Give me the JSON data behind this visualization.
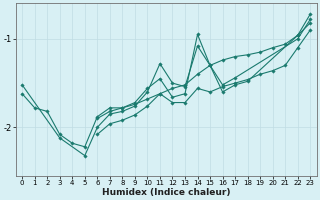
{
  "xlabel": "Humidex (Indice chaleur)",
  "background_color": "#d8f0f4",
  "grid_color": "#c0dde4",
  "line_color": "#1a7a6e",
  "xlim": [
    -0.5,
    23.5
  ],
  "ylim": [
    -2.55,
    -0.6
  ],
  "yticks": [
    -2,
    -1
  ],
  "xticks": [
    0,
    1,
    2,
    3,
    4,
    5,
    6,
    7,
    8,
    9,
    10,
    11,
    12,
    13,
    14,
    15,
    16,
    17,
    18,
    19,
    20,
    21,
    22,
    23
  ],
  "series": [
    [
      0,
      -1.62,
      1,
      -1.78,
      2,
      -1.82,
      3,
      -2.08,
      4,
      -2.18,
      5,
      -2.22,
      6,
      -1.88,
      7,
      -1.78,
      8,
      -1.78,
      9,
      -1.74,
      10,
      -1.68,
      11,
      -1.62,
      12,
      -1.56,
      13,
      -1.52,
      14,
      -1.4,
      15,
      -1.3,
      16,
      -1.24,
      17,
      -1.2,
      18,
      -1.18,
      19,
      -1.15,
      20,
      -1.1,
      21,
      -1.06,
      22,
      -0.96,
      23,
      -0.82
    ],
    [
      0,
      -1.52,
      3,
      -2.12,
      5,
      -2.32,
      6,
      -2.0,
      7,
      -1.85,
      8,
      -1.82,
      9,
      -1.76,
      10,
      -1.6,
      11,
      -1.28,
      12,
      -1.5,
      13,
      -1.54,
      14,
      -1.08,
      15,
      -1.3,
      16,
      -1.6,
      17,
      -1.52,
      18,
      -1.48,
      22,
      -0.96,
      23,
      -0.72
    ],
    [
      6,
      -1.9,
      7,
      -1.82,
      8,
      -1.78,
      9,
      -1.72,
      10,
      -1.56,
      11,
      -1.45,
      12,
      -1.66,
      13,
      -1.62,
      14,
      -0.95,
      15,
      -1.3,
      16,
      -1.52,
      17,
      -1.44,
      22,
      -1.0,
      23,
      -0.78
    ],
    [
      6,
      -2.08,
      7,
      -1.96,
      8,
      -1.92,
      9,
      -1.86,
      10,
      -1.76,
      11,
      -1.62,
      12,
      -1.72,
      13,
      -1.72,
      14,
      -1.56,
      15,
      -1.6,
      16,
      -1.54,
      17,
      -1.5,
      18,
      -1.46,
      19,
      -1.4,
      20,
      -1.36,
      21,
      -1.3,
      22,
      -1.1,
      23,
      -0.9
    ]
  ]
}
